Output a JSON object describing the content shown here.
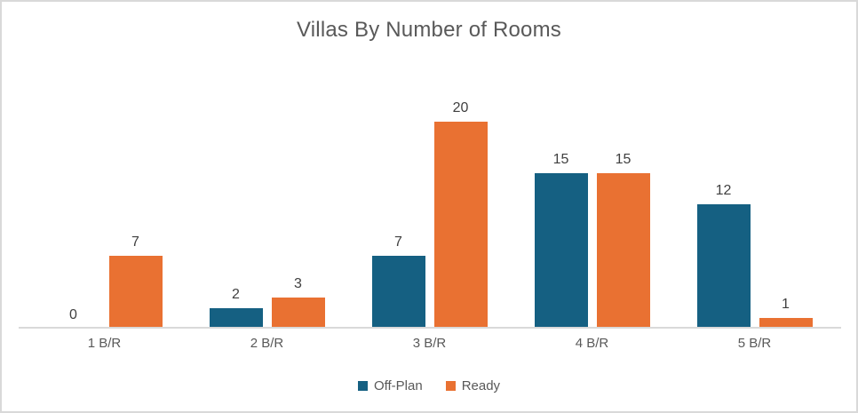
{
  "chart_data": {
    "type": "bar",
    "title": "Villas By Number of Rooms",
    "categories": [
      "1 B/R",
      "2 B/R",
      "3 B/R",
      "4 B/R",
      "5 B/R"
    ],
    "series": [
      {
        "name": "Off-Plan",
        "color": "#156082",
        "values": [
          0,
          2,
          7,
          15,
          12
        ]
      },
      {
        "name": "Ready",
        "color": "#E97132",
        "values": [
          7,
          3,
          20,
          15,
          1
        ]
      }
    ],
    "ylim": [
      0,
      20
    ],
    "data_labels": true,
    "grid": false,
    "legend_position": "bottom",
    "xlabel": "",
    "ylabel": ""
  },
  "colors": {
    "title_text": "#595959",
    "axis_text": "#595959",
    "data_label_text": "#404040",
    "axis_line": "#D9D9D9",
    "frame_border": "#D9D9D9",
    "background": "#FFFFFF"
  },
  "layout_values": {
    "pixels_per_unit": 11.65
  }
}
